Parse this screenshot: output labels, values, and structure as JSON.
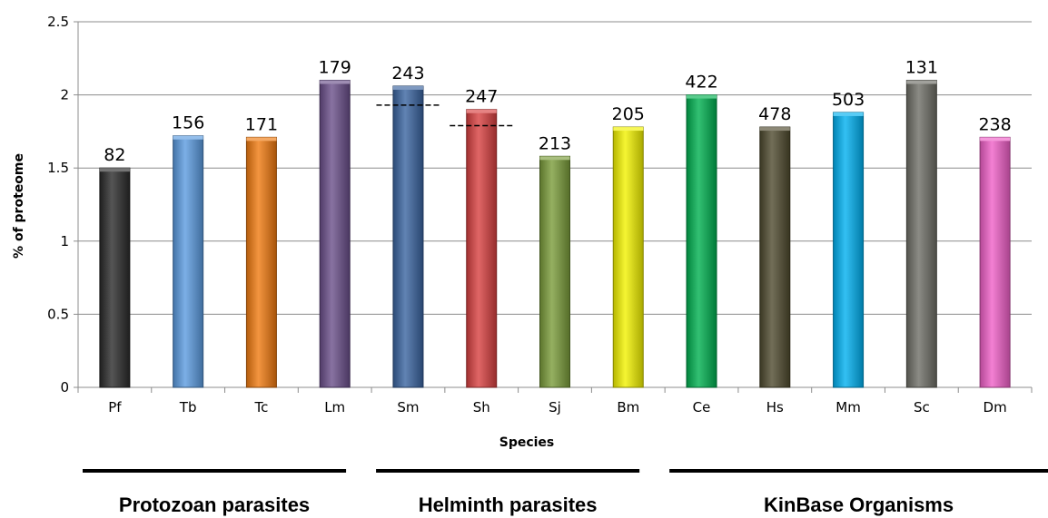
{
  "chart_data": {
    "type": "bar",
    "title": "",
    "xlabel": "Species",
    "ylabel": "% of proteome",
    "ylim": [
      0,
      2.5
    ],
    "yticks": [
      "0",
      "0.5",
      "1",
      "1.5",
      "2",
      "2.5"
    ],
    "grid": true,
    "categories": [
      "Pf",
      "Tb",
      "Tc",
      "Lm",
      "Sm",
      "Sh",
      "Sj",
      "Bm",
      "Ce",
      "Hs",
      "Mm",
      "Sc",
      "Dm"
    ],
    "values": [
      1.5,
      1.72,
      1.71,
      2.1,
      2.06,
      1.9,
      1.58,
      1.78,
      2.0,
      1.78,
      1.88,
      2.1,
      1.71
    ],
    "data_labels": [
      "82",
      "156",
      "171",
      "179",
      "243",
      "247",
      "213",
      "205",
      "422",
      "478",
      "503",
      "131",
      "238"
    ],
    "colors": [
      "#2b2b2b",
      "#5b9be0",
      "#f07a10",
      "#6a4f8a",
      "#3a64a0",
      "#d84040",
      "#7a9c3a",
      "#f2f200",
      "#00b050",
      "#4f4a2e",
      "#00b0f0",
      "#6e6e66",
      "#f060c8"
    ],
    "reference_lines": [
      {
        "category": "Sm",
        "value": 1.93,
        "style": "dashed"
      },
      {
        "category": "Sh",
        "value": 1.79,
        "style": "dashed"
      }
    ],
    "groups": [
      {
        "label": "Protozoan parasites",
        "categories": [
          "Pf",
          "Tb",
          "Tc",
          "Lm"
        ]
      },
      {
        "label": "Helminth parasites",
        "categories": [
          "Sm",
          "Sh",
          "Sj",
          "Bm"
        ]
      },
      {
        "label": "KinBase Organisms",
        "categories": [
          "Ce",
          "Hs",
          "Mm",
          "Sc",
          "Dm"
        ]
      }
    ]
  }
}
